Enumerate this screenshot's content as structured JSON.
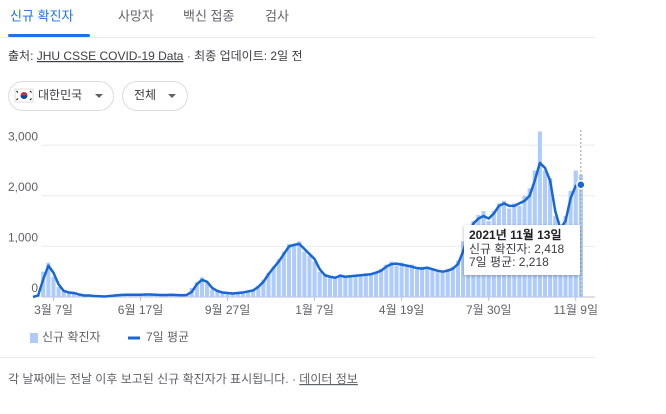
{
  "tabs": [
    "신규 확진자",
    "사망자",
    "백신 접종",
    "검사"
  ],
  "source": {
    "prefix": "출처:",
    "link": "JHU CSSE COVID-19 Data",
    "separator": "·",
    "updated": "최종 업데이트: 2일 전"
  },
  "filters": [
    "대한민국",
    "전체"
  ],
  "chart_data": {
    "type": "bar-line",
    "categories": [
      null,
      null,
      null,
      null,
      "3월 7일",
      null,
      null,
      null,
      null,
      null,
      null,
      null,
      null,
      null,
      null,
      null,
      null,
      null,
      null,
      null,
      null,
      "6월 17일",
      null,
      null,
      null,
      null,
      null,
      null,
      null,
      null,
      null,
      null,
      null,
      null,
      null,
      null,
      null,
      null,
      "9월 27일",
      null,
      null,
      null,
      null,
      null,
      null,
      null,
      null,
      null,
      null,
      null,
      null,
      null,
      null,
      null,
      null,
      "1월 7일",
      null,
      null,
      null,
      null,
      null,
      null,
      null,
      null,
      null,
      null,
      null,
      null,
      null,
      null,
      null,
      null,
      "4월 19일",
      null,
      null,
      null,
      null,
      null,
      null,
      null,
      null,
      null,
      null,
      null,
      null,
      null,
      null,
      null,
      null,
      "7월 30일",
      null,
      null,
      null,
      null,
      null,
      null,
      null,
      null,
      null,
      null,
      null,
      null,
      null,
      null,
      null,
      null,
      "11월 9일",
      null
    ],
    "series": [
      {
        "name": "신규 확진자",
        "color": "#aecbfa",
        "values": [
          0,
          40,
          500,
          680,
          400,
          200,
          110,
          100,
          70,
          40,
          25,
          40,
          15,
          20,
          8,
          30,
          35,
          50,
          40,
          55,
          50,
          40,
          60,
          45,
          50,
          35,
          45,
          50,
          30,
          40,
          50,
          180,
          300,
          390,
          280,
          150,
          110,
          80,
          95,
          60,
          90,
          100,
          120,
          150,
          220,
          340,
          480,
          600,
          750,
          900,
          1050,
          1020,
          1100,
          900,
          820,
          700,
          500,
          450,
          380,
          360,
          450,
          380,
          430,
          440,
          410,
          470,
          430,
          500,
          560,
          640,
          700,
          620,
          680,
          600,
          640,
          540,
          600,
          560,
          570,
          500,
          480,
          560,
          600,
          720,
          1100,
          1300,
          1500,
          1620,
          1700,
          1500,
          1700,
          1850,
          1900,
          1750,
          1850,
          1800,
          2000,
          2150,
          2500,
          3270,
          2500,
          2350,
          1600,
          1300,
          1600,
          2100,
          2500,
          2418
        ]
      },
      {
        "name": "7일 평균",
        "color": "#1967d2",
        "values": [
          0,
          30,
          350,
          620,
          480,
          250,
          120,
          90,
          80,
          50,
          30,
          30,
          20,
          15,
          10,
          20,
          30,
          40,
          45,
          45,
          45,
          45,
          50,
          50,
          45,
          40,
          40,
          45,
          40,
          35,
          40,
          100,
          250,
          340,
          300,
          180,
          120,
          90,
          80,
          70,
          80,
          90,
          110,
          130,
          200,
          300,
          450,
          580,
          700,
          850,
          1000,
          1030,
          1050,
          950,
          850,
          750,
          550,
          430,
          400,
          380,
          420,
          400,
          410,
          420,
          430,
          440,
          450,
          480,
          520,
          600,
          650,
          660,
          640,
          620,
          600,
          570,
          560,
          580,
          550,
          520,
          500,
          520,
          560,
          650,
          900,
          1200,
          1450,
          1550,
          1600,
          1550,
          1650,
          1800,
          1850,
          1800,
          1800,
          1850,
          1900,
          2000,
          2300,
          2650,
          2550,
          2300,
          1700,
          1350,
          1500,
          1950,
          2200,
          2218
        ]
      }
    ],
    "ylim": [
      0,
      3300
    ],
    "yticks": [
      0,
      {
        "value": 1000,
        "label": "1,000"
      },
      {
        "value": 2000,
        "label": "2,000"
      },
      {
        "value": 3000,
        "label": "3,000"
      }
    ],
    "grid": true,
    "tooltip": {
      "title": "2021년 11월 13일",
      "lines": [
        "신규 확진자: 2,418",
        "7일 평균: 2,218"
      ]
    }
  },
  "footer": {
    "note": "각 날짜에는 전날 이후 보고된 신규 확진자가 표시됩니다.",
    "separator": "·",
    "link": "데이터 정보"
  }
}
